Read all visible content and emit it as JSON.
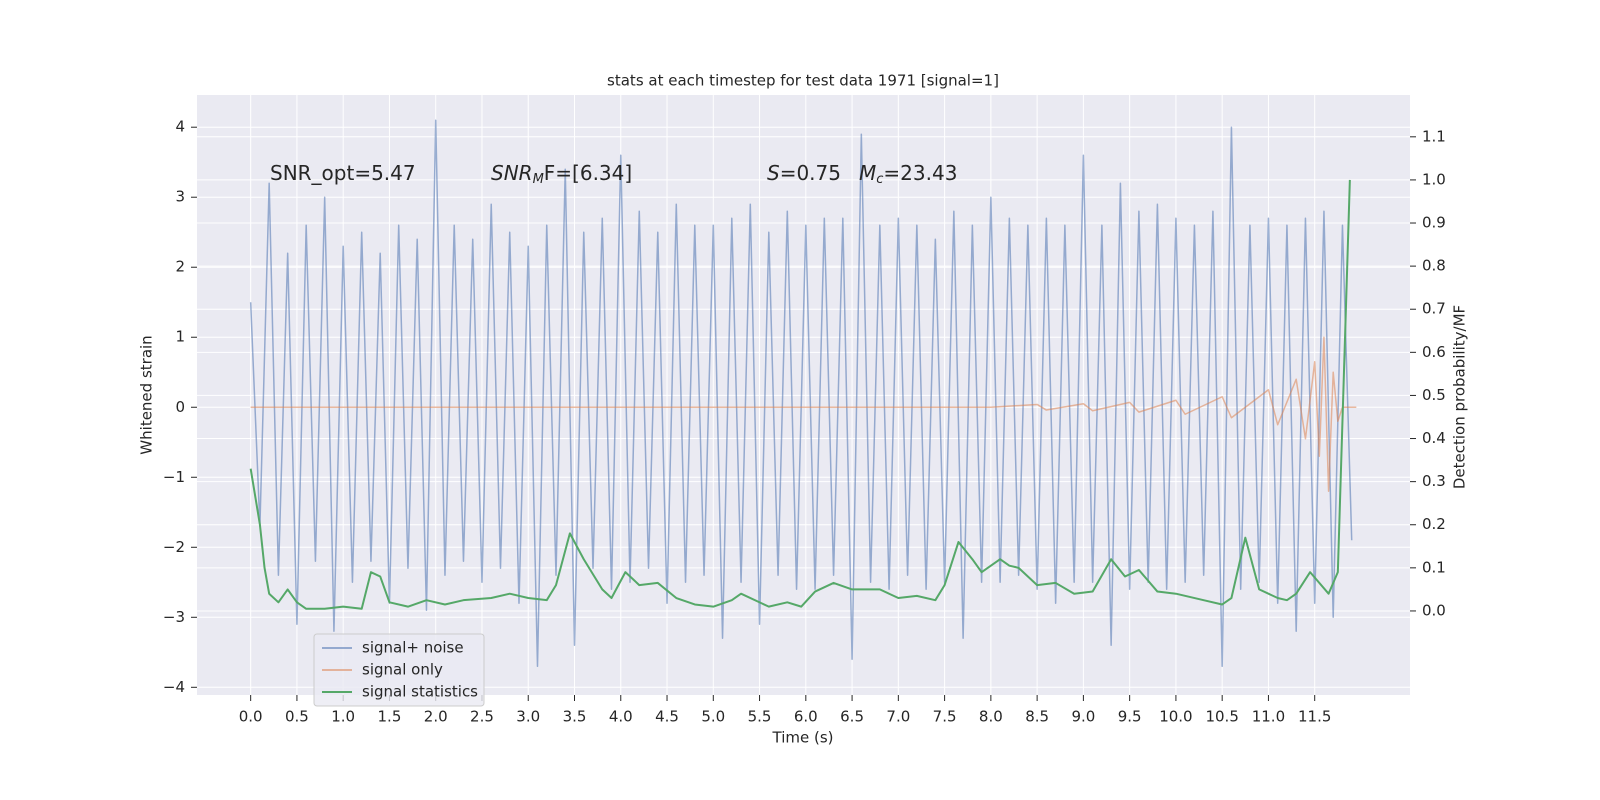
{
  "chart_data": {
    "type": "line",
    "title": "stats at each timestep for test data 1971 [signal=1]",
    "xlabel": "Time (s)",
    "ylabel": "Whitened strain",
    "y2label": "Detection probability/MF",
    "annotations": [
      [
        "SNR_opt=5.47"
      ],
      [
        "SNR",
        "M",
        "F=[6.34]"
      ],
      [
        "S",
        "=0.75"
      ],
      [
        "M",
        "c",
        "=23.43"
      ]
    ],
    "xlim": [
      -0.58,
      12.53
    ],
    "ylim": [
      -4.11,
      4.46
    ],
    "y2lim": [
      -0.195,
      1.197
    ],
    "xticks": [
      {
        "value": 0,
        "label": "0.0"
      },
      {
        "value": 0.5,
        "label": "0.5"
      },
      {
        "value": 1,
        "label": "1.0"
      },
      {
        "value": 1.5,
        "label": "1.5"
      },
      {
        "value": 2,
        "label": "2.0"
      },
      {
        "value": 2.5,
        "label": "2.5"
      },
      {
        "value": 3,
        "label": "3.0"
      },
      {
        "value": 3.5,
        "label": "3.5"
      },
      {
        "value": 4,
        "label": "4.0"
      },
      {
        "value": 4.5,
        "label": "4.5"
      },
      {
        "value": 5,
        "label": "5.0"
      },
      {
        "value": 5.5,
        "label": "5.5"
      },
      {
        "value": 6,
        "label": "6.0"
      },
      {
        "value": 6.5,
        "label": "6.5"
      },
      {
        "value": 7,
        "label": "7.0"
      },
      {
        "value": 7.5,
        "label": "7.5"
      },
      {
        "value": 8,
        "label": "8.0"
      },
      {
        "value": 8.5,
        "label": "8.5"
      },
      {
        "value": 9,
        "label": "9.0"
      },
      {
        "value": 9.5,
        "label": "9.5"
      },
      {
        "value": 10,
        "label": "10.0"
      },
      {
        "value": 10.5,
        "label": "10.5"
      },
      {
        "value": 11,
        "label": "11.0"
      },
      {
        "value": 11.5,
        "label": "11.5"
      }
    ],
    "yticks": [
      {
        "value": -4,
        "label": "−4"
      },
      {
        "value": -3,
        "label": "−3"
      },
      {
        "value": -2,
        "label": "−2"
      },
      {
        "value": -1,
        "label": "−1"
      },
      0,
      1,
      2,
      3,
      4
    ],
    "y2ticks": [
      {
        "value": 0,
        "label": "0.0"
      },
      0.1,
      0.2,
      0.3,
      0.4,
      0.5,
      0.6,
      0.7,
      0.8,
      0.9,
      {
        "value": 1,
        "label": "1.0"
      },
      1.1
    ],
    "grid": true,
    "legend": "lower left",
    "series": [
      {
        "name": "signal+ noise",
        "color": "#4c72b0",
        "x": [
          0,
          0.1,
          0.2,
          0.3,
          0.4,
          0.5,
          0.6,
          0.7,
          0.8,
          0.9,
          1,
          1.1,
          1.2,
          1.3,
          1.4,
          1.5,
          1.6,
          1.7,
          1.8,
          1.9,
          2,
          2.1,
          2.2,
          2.3,
          2.4,
          2.5,
          2.6,
          2.7,
          2.8,
          2.9,
          3,
          3.1,
          3.2,
          3.3,
          3.4,
          3.5,
          3.6,
          3.7,
          3.8,
          3.9,
          4,
          4.1,
          4.2,
          4.3,
          4.4,
          4.5,
          4.6,
          4.7,
          4.8,
          4.9,
          5,
          5.1,
          5.2,
          5.3,
          5.4,
          5.5,
          5.6,
          5.7,
          5.8,
          5.9,
          6,
          6.1,
          6.2,
          6.3,
          6.4,
          6.5,
          6.6,
          6.7,
          6.8,
          6.9,
          7,
          7.1,
          7.2,
          7.3,
          7.4,
          7.5,
          7.6,
          7.7,
          7.8,
          7.9,
          8,
          8.1,
          8.2,
          8.3,
          8.4,
          8.5,
          8.6,
          8.7,
          8.8,
          8.9,
          9,
          9.1,
          9.2,
          9.3,
          9.4,
          9.5,
          9.6,
          9.7,
          9.8,
          9.9,
          10,
          10.1,
          10.2,
          10.3,
          10.4,
          10.5,
          10.6,
          10.7,
          10.8,
          10.9,
          11,
          11.1,
          11.2,
          11.3,
          11.4,
          11.5,
          11.6,
          11.7,
          11.8,
          11.9
        ],
        "values": [
          1.5,
          -1.7,
          3.2,
          -2.4,
          2.2,
          -3.1,
          2.6,
          -2.2,
          3.0,
          -3.2,
          2.3,
          -2.5,
          2.5,
          -2.2,
          2.2,
          -2.8,
          2.6,
          -2.3,
          2.4,
          -2.9,
          4.1,
          -2.4,
          2.6,
          -2.2,
          2.4,
          -2.5,
          2.9,
          -2.3,
          2.5,
          -2.8,
          2.3,
          -3.7,
          2.6,
          -2.4,
          3.4,
          -3.4,
          2.5,
          -2.3,
          2.7,
          -2.6,
          3.6,
          -2.5,
          2.8,
          -2.3,
          2.5,
          -2.8,
          2.9,
          -2.5,
          2.6,
          -2.4,
          2.6,
          -3.3,
          2.7,
          -2.5,
          2.9,
          -3.1,
          2.5,
          -2.4,
          2.8,
          -2.6,
          2.6,
          -2.6,
          2.7,
          -2.4,
          2.7,
          -3.6,
          3.9,
          -2.5,
          2.6,
          -2.6,
          2.7,
          -2.4,
          2.6,
          -2.6,
          2.4,
          -2.5,
          2.8,
          -3.3,
          2.6,
          -2.5,
          3.0,
          -2.5,
          2.7,
          -2.4,
          2.6,
          -2.6,
          2.7,
          -2.8,
          2.6,
          -2.5,
          3.6,
          -2.5,
          2.6,
          -3.4,
          3.2,
          -2.6,
          2.8,
          -2.5,
          2.9,
          -2.6,
          2.7,
          -2.5,
          2.6,
          -2.4,
          2.8,
          -3.7,
          4.0,
          -2.6,
          2.6,
          -2.5,
          2.7,
          -2.8,
          2.6,
          -3.2,
          2.7,
          -2.8,
          2.8,
          -3.0,
          2.6,
          -1.9
        ]
      },
      {
        "name": "signal only",
        "color": "#dd8452",
        "x": [
          0,
          8.0,
          8.5,
          8.6,
          9.0,
          9.1,
          9.5,
          9.6,
          10.0,
          10.1,
          10.5,
          10.6,
          11.0,
          11.1,
          11.3,
          11.4,
          11.5,
          11.55,
          11.6,
          11.65,
          11.7,
          11.75,
          11.8,
          11.95
        ],
        "values": [
          0,
          0,
          0.04,
          -0.04,
          0.05,
          -0.05,
          0.07,
          -0.07,
          0.1,
          -0.1,
          0.15,
          -0.15,
          0.25,
          -0.25,
          0.4,
          -0.45,
          0.65,
          -0.7,
          1.0,
          -1.2,
          0.5,
          -0.2,
          0,
          0
        ]
      },
      {
        "name": "signal statistics",
        "color": "#55a868",
        "axis": "y2",
        "x": [
          0,
          0.1,
          0.15,
          0.2,
          0.3,
          0.4,
          0.5,
          0.6,
          0.8,
          1.0,
          1.2,
          1.3,
          1.4,
          1.5,
          1.7,
          1.9,
          2.1,
          2.3,
          2.6,
          2.8,
          3.0,
          3.2,
          3.3,
          3.45,
          3.6,
          3.8,
          3.9,
          4.05,
          4.2,
          4.4,
          4.6,
          4.8,
          5.0,
          5.2,
          5.3,
          5.6,
          5.8,
          5.95,
          6.1,
          6.3,
          6.5,
          6.8,
          7.0,
          7.2,
          7.4,
          7.5,
          7.65,
          7.8,
          7.9,
          8.1,
          8.2,
          8.3,
          8.5,
          8.7,
          8.9,
          9.1,
          9.3,
          9.45,
          9.6,
          9.8,
          10.0,
          10.3,
          10.5,
          10.6,
          10.75,
          10.9,
          11.1,
          11.2,
          11.3,
          11.45,
          11.65,
          11.75,
          11.88
        ],
        "values": [
          0.33,
          0.2,
          0.1,
          0.04,
          0.02,
          0.05,
          0.02,
          0.005,
          0.005,
          0.01,
          0.005,
          0.09,
          0.08,
          0.02,
          0.01,
          0.025,
          0.015,
          0.025,
          0.03,
          0.04,
          0.03,
          0.025,
          0.06,
          0.18,
          0.12,
          0.05,
          0.03,
          0.09,
          0.06,
          0.065,
          0.03,
          0.015,
          0.01,
          0.025,
          0.04,
          0.01,
          0.02,
          0.01,
          0.045,
          0.065,
          0.05,
          0.05,
          0.03,
          0.035,
          0.025,
          0.06,
          0.16,
          0.12,
          0.09,
          0.12,
          0.105,
          0.1,
          0.06,
          0.065,
          0.04,
          0.045,
          0.12,
          0.08,
          0.095,
          0.045,
          0.04,
          0.025,
          0.015,
          0.03,
          0.17,
          0.05,
          0.03,
          0.025,
          0.04,
          0.09,
          0.04,
          0.09,
          1.0
        ]
      }
    ]
  }
}
